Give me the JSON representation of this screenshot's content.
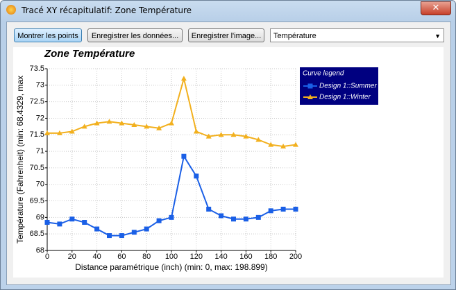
{
  "window": {
    "title": "Tracé XY récapitulatif: Zone Température"
  },
  "toolbar": {
    "buttons": [
      "Montrer les points",
      "Enregistrer les données...",
      "Enregistrer l'image..."
    ],
    "dropdown": "Température"
  },
  "chart_data": {
    "type": "line",
    "title": "Zone Température",
    "x_label": "Distance paramétrique  (inch) (min: 0, max: 198.899)",
    "y_label": "Température (Fahrenheit)  (min: 68.4329, max",
    "x": [
      0,
      10,
      20,
      30,
      40,
      50,
      60,
      70,
      80,
      90,
      100,
      110,
      120,
      130,
      140,
      150,
      160,
      170,
      180,
      190,
      200
    ],
    "series": [
      {
        "name": "Design 1::Summer",
        "color": "#1a5fe6",
        "marker": "square",
        "values": [
          68.85,
          68.8,
          68.95,
          68.85,
          68.65,
          68.45,
          68.45,
          68.55,
          68.65,
          68.9,
          69.0,
          70.85,
          70.25,
          69.25,
          69.05,
          68.95,
          68.95,
          69.0,
          69.2,
          69.25,
          69.25
        ]
      },
      {
        "name": "Design 1::Winter",
        "color": "#f2b01e",
        "marker": "triangle",
        "values": [
          71.55,
          71.55,
          71.6,
          71.75,
          71.85,
          71.9,
          71.85,
          71.8,
          71.75,
          71.7,
          71.85,
          73.2,
          71.6,
          71.45,
          71.5,
          71.5,
          71.45,
          71.35,
          71.2,
          71.15,
          71.2
        ]
      }
    ],
    "legend_title": "Curve legend",
    "xlim": [
      0,
      200
    ],
    "xticks": [
      0,
      20,
      40,
      60,
      80,
      100,
      120,
      140,
      160,
      180,
      200
    ],
    "ylim": [
      68,
      73.5
    ],
    "yticks": [
      68,
      68.5,
      69,
      69.5,
      70,
      70.5,
      71,
      71.5,
      72,
      72.5,
      73,
      73.5
    ],
    "grid": true
  }
}
